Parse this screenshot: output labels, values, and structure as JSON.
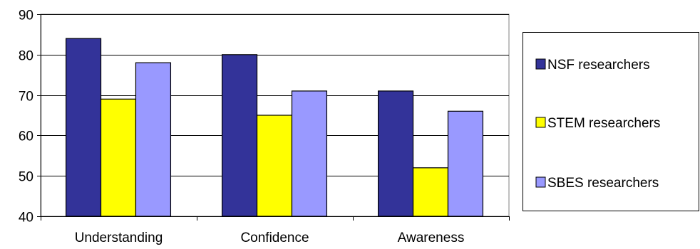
{
  "chart_data": {
    "type": "bar",
    "title": "",
    "xlabel": "",
    "ylabel": "",
    "categories": [
      "Understanding",
      "Confidence",
      "Awareness"
    ],
    "series": [
      {
        "name": "NSF researchers",
        "values": [
          84,
          80,
          71
        ],
        "color": "#333399"
      },
      {
        "name": "STEM researchers",
        "values": [
          69,
          65,
          52
        ],
        "color": "#ffff00"
      },
      {
        "name": "SBES researchers",
        "values": [
          78,
          71,
          66
        ],
        "color": "#9999ff"
      }
    ],
    "ylim": [
      40,
      90
    ],
    "yticks": [
      40,
      50,
      60,
      70,
      80,
      90
    ],
    "grid": true,
    "legend_position": "right"
  }
}
